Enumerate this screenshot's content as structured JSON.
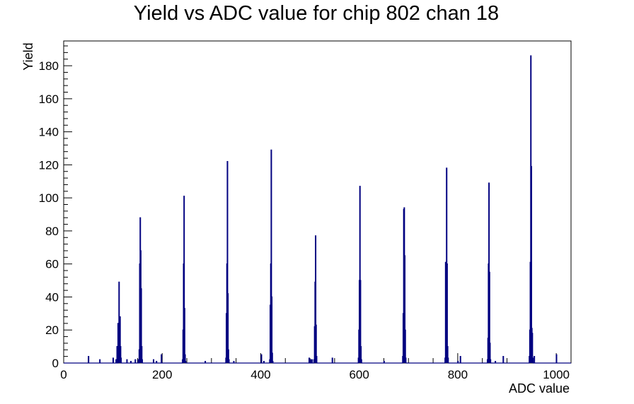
{
  "chart_data": {
    "type": "histogram",
    "title": "Yield vs ADC value for chip 802 chan 18",
    "xlabel": "ADC value",
    "ylabel": "Yield",
    "xlim": [
      0,
      1030
    ],
    "ylim": [
      0,
      195
    ],
    "xticks": [
      0,
      200,
      400,
      600,
      800,
      1000
    ],
    "yticks": [
      0,
      20,
      40,
      60,
      80,
      100,
      120,
      140,
      160,
      180
    ],
    "grid": false,
    "legend": "none",
    "line_color": "#000080",
    "bins": [
      [
        50,
        4
      ],
      [
        73,
        2
      ],
      [
        100,
        3
      ],
      [
        106,
        2
      ],
      [
        108,
        10
      ],
      [
        110,
        24
      ],
      [
        111,
        14
      ],
      [
        112,
        49
      ],
      [
        113,
        22
      ],
      [
        114,
        28
      ],
      [
        115,
        10
      ],
      [
        116,
        3
      ],
      [
        128,
        2
      ],
      [
        136,
        1
      ],
      [
        145,
        2
      ],
      [
        151,
        2
      ],
      [
        153,
        8
      ],
      [
        154,
        60
      ],
      [
        155,
        88
      ],
      [
        156,
        68
      ],
      [
        157,
        45
      ],
      [
        158,
        10
      ],
      [
        159,
        2
      ],
      [
        182,
        2
      ],
      [
        188,
        1
      ],
      [
        198,
        5
      ],
      [
        241,
        2
      ],
      [
        242,
        20
      ],
      [
        243,
        60
      ],
      [
        244,
        101
      ],
      [
        245,
        33
      ],
      [
        246,
        5
      ],
      [
        247,
        1
      ],
      [
        287,
        1
      ],
      [
        329,
        3
      ],
      [
        330,
        30
      ],
      [
        331,
        60
      ],
      [
        332,
        122
      ],
      [
        333,
        42
      ],
      [
        334,
        8
      ],
      [
        335,
        2
      ],
      [
        345,
        1
      ],
      [
        401,
        5
      ],
      [
        406,
        1
      ],
      [
        418,
        2
      ],
      [
        419,
        35
      ],
      [
        420,
        60
      ],
      [
        421,
        129
      ],
      [
        422,
        40
      ],
      [
        423,
        6
      ],
      [
        424,
        1
      ],
      [
        498,
        3
      ],
      [
        501,
        2
      ],
      [
        504,
        2
      ],
      [
        508,
        2
      ],
      [
        509,
        22
      ],
      [
        510,
        49
      ],
      [
        511,
        77
      ],
      [
        512,
        23
      ],
      [
        513,
        4
      ],
      [
        545,
        3
      ],
      [
        598,
        3
      ],
      [
        599,
        20
      ],
      [
        600,
        50
      ],
      [
        601,
        107
      ],
      [
        602,
        50
      ],
      [
        603,
        10
      ],
      [
        604,
        2
      ],
      [
        650,
        1
      ],
      [
        688,
        4
      ],
      [
        689,
        30
      ],
      [
        690,
        93
      ],
      [
        691,
        94
      ],
      [
        692,
        65
      ],
      [
        693,
        20
      ],
      [
        694,
        3
      ],
      [
        774,
        3
      ],
      [
        775,
        61
      ],
      [
        776,
        35
      ],
      [
        777,
        118
      ],
      [
        778,
        60
      ],
      [
        779,
        10
      ],
      [
        780,
        3
      ],
      [
        800,
        1
      ],
      [
        805,
        4
      ],
      [
        860,
        2
      ],
      [
        861,
        15
      ],
      [
        862,
        60
      ],
      [
        863,
        109
      ],
      [
        864,
        55
      ],
      [
        865,
        12
      ],
      [
        866,
        2
      ],
      [
        876,
        1
      ],
      [
        892,
        4
      ],
      [
        945,
        4
      ],
      [
        946,
        20
      ],
      [
        947,
        61
      ],
      [
        948,
        186
      ],
      [
        949,
        119
      ],
      [
        950,
        21
      ],
      [
        951,
        18
      ],
      [
        952,
        3
      ],
      [
        955,
        4
      ],
      [
        1000,
        5
      ]
    ]
  }
}
